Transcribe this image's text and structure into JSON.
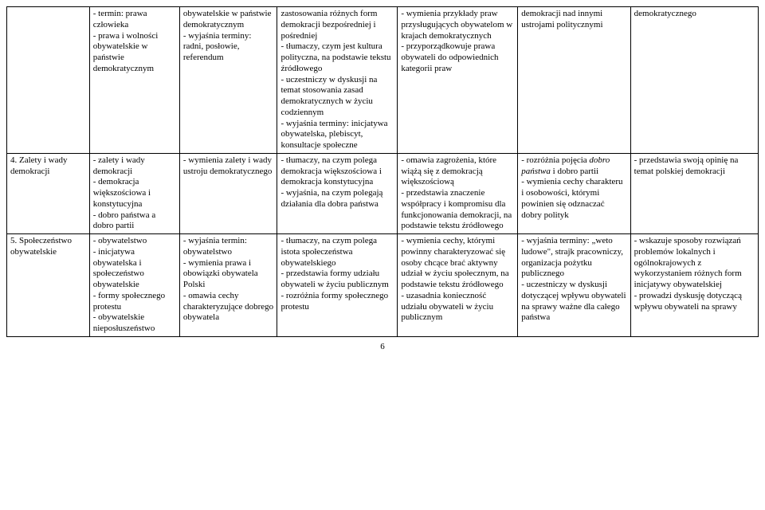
{
  "page_number": "6",
  "rows": [
    {
      "c0": "",
      "c1": "- termin: prawa człowieka\n- prawa i wolności obywatelskie w państwie demokratycznym",
      "c2": "obywatelskie w państwie demokratycznym\n- wyjaśnia terminy: radni, posłowie, referendum",
      "c3": "zastosowania różnych form demokracji bezpośredniej i pośredniej\n- tłumaczy, czym jest kultura polityczna, na podstawie tekstu źródłowego\n- uczestniczy w dyskusji na temat stosowania zasad demokratycznych w życiu codziennym\n- wyjaśnia terminy: inicjatywa obywatelska, plebiscyt, konsultacje społeczne",
      "c4": "- wymienia przykłady praw przysługujących obywatelom w krajach demokratycznych\n- przyporządkowuje prawa obywateli do odpowiednich kategorii praw",
      "c5": "demokracji nad innymi ustrojami politycznymi",
      "c6": "demokratycznego"
    },
    {
      "c0": "4. Zalety i wady demokracji",
      "c1": "- zalety i wady demokracji\n- demokracja większościowa i konstytucyjna\n- dobro państwa a dobro partii",
      "c2": "- wymienia zalety i wady ustroju demokratycznego",
      "c3": "- tłumaczy, na czym polega demokracja większościowa i demokracja konstytucyjna\n- wyjaśnia, na czym polegają działania dla dobra państwa",
      "c4": "- omawia zagrożenia, które wiążą się z demokracją większościową\n- przedstawia znaczenie współpracy i kompromisu dla funkcjonowania demokracji, na podstawie tekstu źródłowego",
      "c5_html": "- rozróżnia pojęcia <span class=\"it\">dobro państwa</span> i dobro partii\n- wymienia cechy charakteru i osobowości, którymi powinien się odznaczać dobry polityk",
      "c6": "- przedstawia swoją opinię na temat polskiej demokracji"
    },
    {
      "c0": "5. Społeczeństwo obywatelskie",
      "c1": "- obywatelstwo\n- inicjatywa obywatelska i społeczeństwo obywatelskie\n- formy społecznego protestu\n- obywatelskie nieposłuszeństwo",
      "c2": "- wyjaśnia termin: obywatelstwo\n- wymienia prawa i obowiązki obywatela Polski\n- omawia cechy charakteryzujące dobrego obywatela",
      "c3": "- tłumaczy, na czym polega istota społeczeństwa obywatelskiego\n- przedstawia formy udziału obywateli w życiu publicznym\n- rozróżnia formy społecznego protestu",
      "c4": "- wymienia cechy, którymi powinny charakteryzować się osoby chcące brać aktywny udział w życiu społecznym, na podstawie tekstu źródłowego\n- uzasadnia konieczność udziału obywateli w życiu publicznym",
      "c5": "- wyjaśnia terminy: „weto ludowe\", strajk pracowniczy, organizacja pożytku publicznego\n- uczestniczy w dyskusji dotyczącej wpływu obywateli na sprawy ważne dla całego państwa",
      "c6": "- wskazuje sposoby rozwiązań problemów lokalnych i ogólnokrajowych z wykorzystaniem różnych form inicjatywy obywatelskiej\n- prowadzi dyskusję dotyczącą wpływu obywateli na sprawy"
    }
  ]
}
